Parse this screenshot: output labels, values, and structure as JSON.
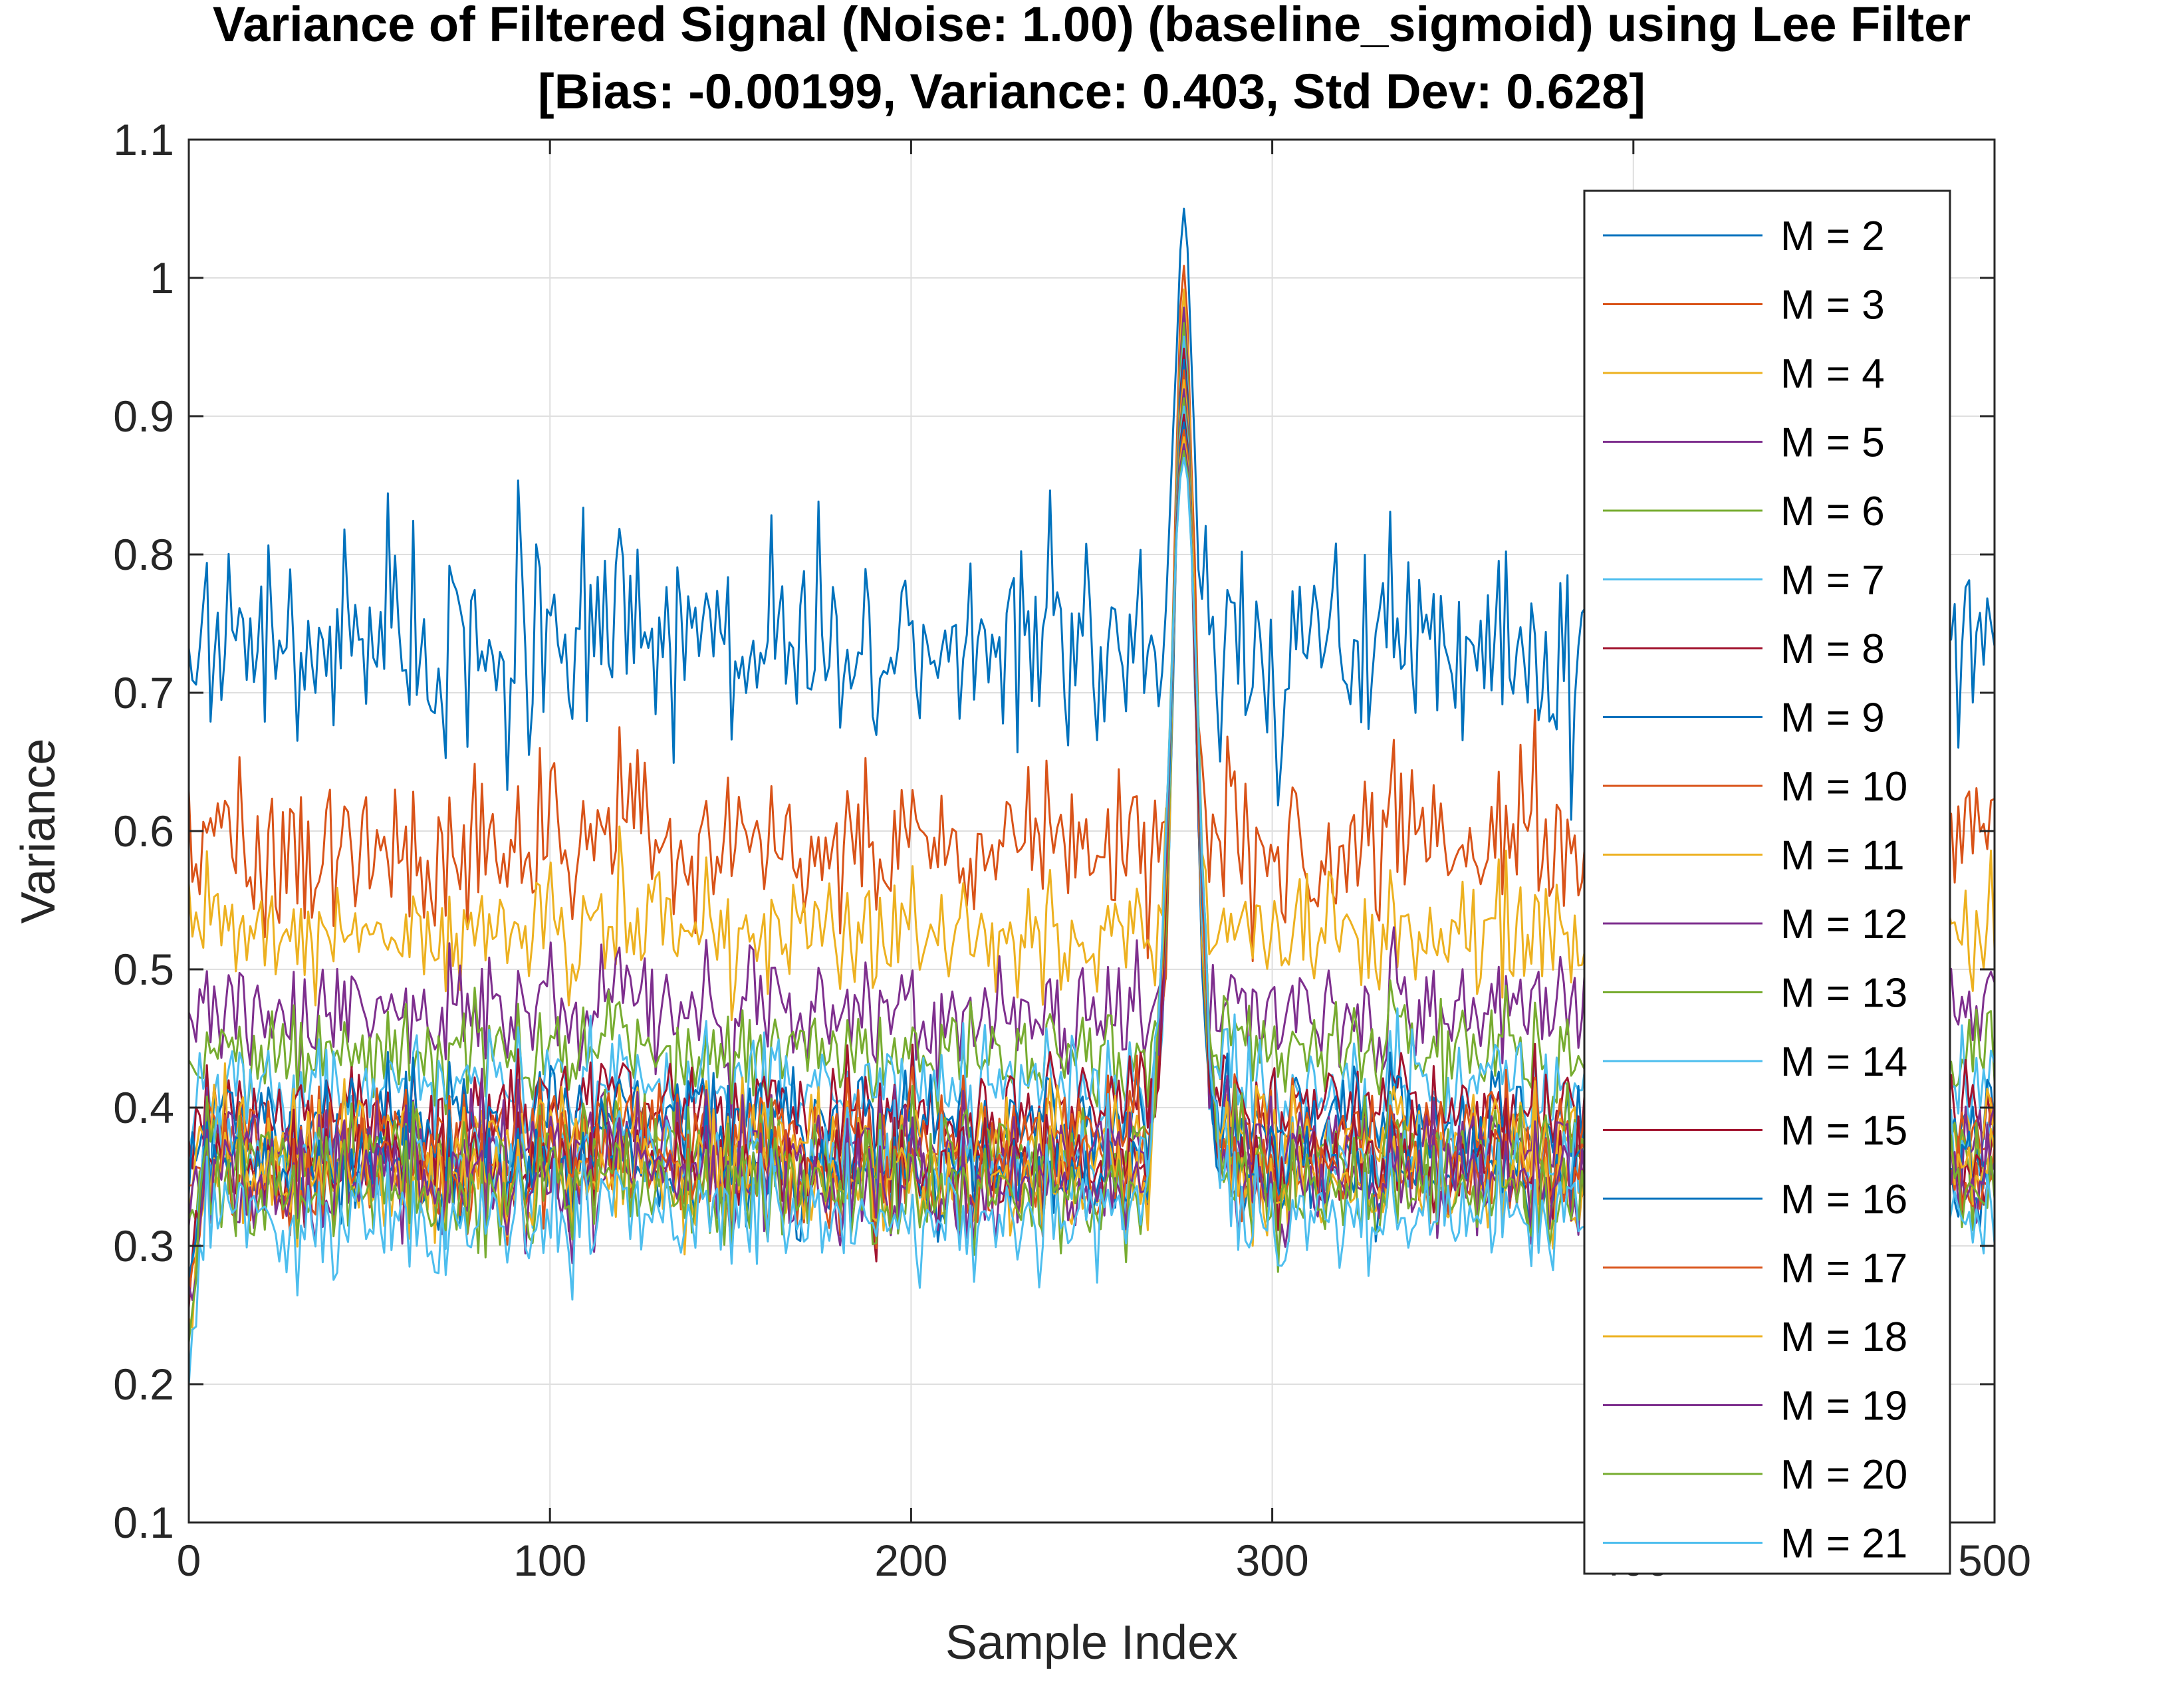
{
  "chart_data": {
    "type": "line",
    "title": [
      "Variance of Filtered Signal (Noise: 1.00) (baseline_sigmoid) using Lee Filter",
      "[Bias: -0.00199, Variance: 0.403, Std Dev: 0.628]"
    ],
    "xlabel": "Sample Index",
    "ylabel": "Variance",
    "xlim": [
      0,
      500
    ],
    "ylim": [
      0.1,
      1.1
    ],
    "xticks": [
      0,
      100,
      200,
      300,
      400,
      500
    ],
    "xtick_labels": [
      "0",
      "100",
      "200",
      "300",
      "400",
      "500"
    ],
    "yticks": [
      0.1,
      0.2,
      0.3,
      0.4,
      0.5,
      0.6,
      0.7,
      0.8,
      0.9,
      1.0,
      1.1
    ],
    "ytick_labels": [
      "0.1",
      "0.2",
      "0.3",
      "0.4",
      "0.5",
      "0.6",
      "0.7",
      "0.8",
      "0.9",
      "1",
      "1.1"
    ],
    "grid": true,
    "legend_position": "right",
    "n_samples": 500,
    "spike": {
      "center": 275,
      "peak": 1.05
    },
    "colors": [
      "#0072BD",
      "#D95319",
      "#EDB120",
      "#7E2F8E",
      "#77AC30",
      "#4DBEEE",
      "#A2142F"
    ],
    "series": [
      {
        "name": "M = 2",
        "mean": 0.735,
        "spread": 0.06
      },
      {
        "name": "M = 3",
        "mean": 0.59,
        "spread": 0.045
      },
      {
        "name": "M = 4",
        "mean": 0.525,
        "spread": 0.035
      },
      {
        "name": "M = 5",
        "mean": 0.47,
        "spread": 0.032
      },
      {
        "name": "M = 6",
        "mean": 0.44,
        "spread": 0.03
      },
      {
        "name": "M = 7",
        "mean": 0.415,
        "spread": 0.03
      },
      {
        "name": "M = 8",
        "mean": 0.4,
        "spread": 0.029
      },
      {
        "name": "M = 9",
        "mean": 0.39,
        "spread": 0.029
      },
      {
        "name": "M = 10",
        "mean": 0.382,
        "spread": 0.029
      },
      {
        "name": "M = 11",
        "mean": 0.376,
        "spread": 0.029
      },
      {
        "name": "M = 12",
        "mean": 0.37,
        "spread": 0.029
      },
      {
        "name": "M = 13",
        "mean": 0.365,
        "spread": 0.029
      },
      {
        "name": "M = 14",
        "mean": 0.36,
        "spread": 0.029
      },
      {
        "name": "M = 15",
        "mean": 0.356,
        "spread": 0.029
      },
      {
        "name": "M = 16",
        "mean": 0.352,
        "spread": 0.029
      },
      {
        "name": "M = 17",
        "mean": 0.349,
        "spread": 0.029
      },
      {
        "name": "M = 18",
        "mean": 0.346,
        "spread": 0.03
      },
      {
        "name": "M = 19",
        "mean": 0.343,
        "spread": 0.03
      },
      {
        "name": "M = 20",
        "mean": 0.34,
        "spread": 0.03
      },
      {
        "name": "M = 21",
        "mean": 0.32,
        "spread": 0.032
      }
    ]
  }
}
